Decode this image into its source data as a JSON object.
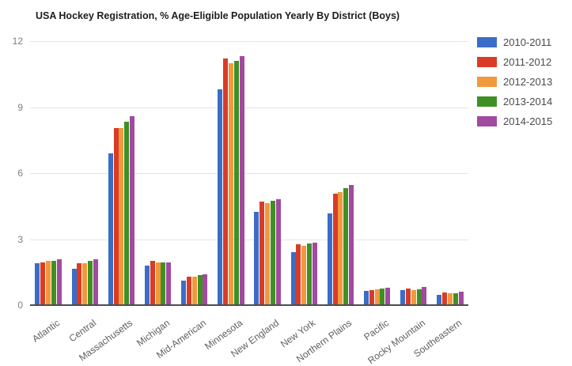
{
  "title": "USA Hockey Registration, % Age-Eligible Population Yearly By District (Boys)",
  "chart_data": {
    "type": "bar",
    "title": "USA Hockey Registration, % Age-Eligible Population Yearly By District (Boys)",
    "categories": [
      "Atlantic",
      "Central",
      "Massachusetts",
      "Michigan",
      "Mid-American",
      "Minnesota",
      "New England",
      "New York",
      "Northern Plains",
      "Pacific",
      "Rocky Mountain",
      "Southeastern"
    ],
    "series": [
      {
        "name": "2010-2011",
        "color": "#3b6cc7",
        "values": [
          1.9,
          1.65,
          6.9,
          1.8,
          1.1,
          9.8,
          4.25,
          2.4,
          4.15,
          0.65,
          0.67,
          0.46
        ]
      },
      {
        "name": "2011-2012",
        "color": "#d93b27",
        "values": [
          1.95,
          1.9,
          8.05,
          2.0,
          1.3,
          11.2,
          4.7,
          2.75,
          5.05,
          0.7,
          0.76,
          0.58
        ]
      },
      {
        "name": "2012-2013",
        "color": "#f0993d",
        "values": [
          2.0,
          1.9,
          8.05,
          1.95,
          1.3,
          11.0,
          4.65,
          2.7,
          5.15,
          0.72,
          0.7,
          0.55
        ]
      },
      {
        "name": "2013-2014",
        "color": "#3f9023",
        "values": [
          2.0,
          2.0,
          8.35,
          1.95,
          1.35,
          11.1,
          4.75,
          2.8,
          5.3,
          0.76,
          0.73,
          0.55
        ]
      },
      {
        "name": "2014-2015",
        "color": "#a14a9f",
        "values": [
          2.1,
          2.1,
          8.6,
          1.95,
          1.4,
          11.3,
          4.8,
          2.85,
          5.45,
          0.8,
          0.84,
          0.61
        ]
      }
    ],
    "xlabel": "",
    "ylabel": "",
    "ylim": [
      0,
      12
    ],
    "yticks": [
      0,
      3,
      6,
      9,
      12
    ],
    "grid": "horizontal",
    "legend_position": "right"
  },
  "colors": {
    "grid": "#e6e6e6",
    "baseline": "#4d4d4d",
    "axis_text": "#7e7e7e",
    "title_text": "#1d1d1d",
    "legend_text": "#4a4a4a"
  }
}
